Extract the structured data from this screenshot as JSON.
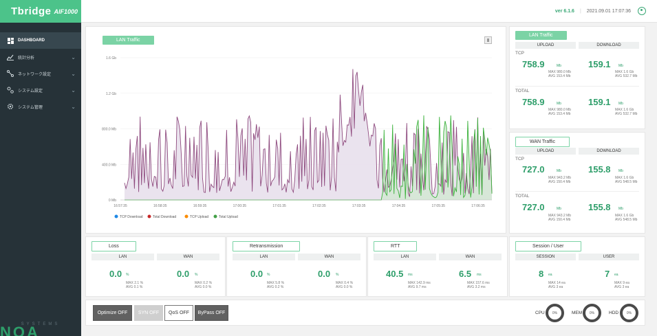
{
  "app": {
    "logo_main": "Tbridge",
    "logo_sub": "AIF1000",
    "brand_big": "NOA",
    "brand_small": "SYSTEMS"
  },
  "sidebar": {
    "items": [
      {
        "label": "DASHBOARD",
        "icon": "dashboard-icon"
      },
      {
        "label": "統計分析",
        "icon": "chart-icon"
      },
      {
        "label": "ネットワーク設定",
        "icon": "network-icon"
      },
      {
        "label": "システム設定",
        "icon": "settings-icon"
      },
      {
        "label": "システム管理",
        "icon": "gear-icon"
      }
    ]
  },
  "topbar": {
    "version": "ver 6.1.6",
    "datetime": "2021.09.01 17:07:36"
  },
  "chart_panel": {
    "tag": "LAN Traffic"
  },
  "chart_data": {
    "type": "line",
    "y_tick_labels": [
      "1.6 Gb",
      "1.2 Gb",
      "800.0 Mb",
      "400.0 Mb",
      "0 Mb"
    ],
    "y_ticks": [
      1600,
      1200,
      800,
      400,
      0
    ],
    "ylim": [
      0,
      1600
    ],
    "x_tick_labels": [
      "16:57:35",
      "16:58:35",
      "16:59:35",
      "17:00:35",
      "17:01:35",
      "17:02:35",
      "17:03:35",
      "17:04:35",
      "17:05:35",
      "17:06:35"
    ],
    "legend": [
      {
        "name": "TCP Download",
        "color": "#1e88e5"
      },
      {
        "name": "Total Download",
        "color": "#c62828"
      },
      {
        "name": "TCP Upload",
        "color": "#fb8c00"
      },
      {
        "name": "Total Upload",
        "color": "#43a047"
      }
    ],
    "series_colors": {
      "purple": "#8e4a7e",
      "green": "#3cb23c"
    }
  },
  "lan_traffic": {
    "tag": "LAN Traffic",
    "col_upload": "UPLOAD",
    "col_download": "DOWNLOAD",
    "tcp_label": "TCP",
    "total_label": "TOTAL",
    "tcp": {
      "up_value": "758.9",
      "up_unit": "Mb",
      "up_max": "MAX 980.0 Mb",
      "up_avg": "AVG 153.4 Mb",
      "down_value": "159.1",
      "down_unit": "Mb",
      "down_max": "MAX 1.6 Gb",
      "down_avg": "AVG 532.7 Mb"
    },
    "total": {
      "up_value": "758.9",
      "up_unit": "Mb",
      "up_max": "MAX 980.0 Mb",
      "up_avg": "AVG 153.4 Mb",
      "down_value": "159.1",
      "down_unit": "Mb",
      "down_max": "MAX 1.6 Gb",
      "down_avg": "AVG 532.7 Mb"
    }
  },
  "wan_traffic": {
    "tag": "WAN Traffic",
    "col_upload": "UPLOAD",
    "col_download": "DOWNLOAD",
    "tcp_label": "TCP",
    "total_label": "TOTAL",
    "tcp": {
      "up_value": "727.0",
      "up_unit": "Mb",
      "up_max": "MAX 943.2 Mb",
      "up_avg": "AVG 150.4 Mb",
      "down_value": "155.8",
      "down_unit": "Mb",
      "down_max": "MAX 1.6 Gb",
      "down_avg": "AVG 548.5 Mb"
    },
    "total": {
      "up_value": "727.0",
      "up_unit": "Mb",
      "up_max": "MAX 943.2 Mb",
      "up_avg": "AVG 150.4 Mb",
      "down_value": "155.8",
      "down_unit": "Mb",
      "down_max": "MAX 1.6 Gb",
      "down_avg": "AVG 548.5 Mb"
    }
  },
  "small_panels": [
    {
      "tag": "Loss",
      "left_hdr": "LAN",
      "right_hdr": "WAN",
      "left": {
        "value": "0.0",
        "unit": "%",
        "max": "MAX 2.1 %",
        "avg": "AVG 0.1 %"
      },
      "right": {
        "value": "0.0",
        "unit": "%",
        "max": "MAX 0.2 %",
        "avg": "AVG 0.0 %"
      }
    },
    {
      "tag": "Retransmission",
      "left_hdr": "LAN",
      "right_hdr": "WAN",
      "left": {
        "value": "0.0",
        "unit": "%",
        "max": "MAX 5.8 %",
        "avg": "AVG 0.2 %"
      },
      "right": {
        "value": "0.0",
        "unit": "%",
        "max": "MAX 0.4 %",
        "avg": "AVG 0.0 %"
      }
    },
    {
      "tag": "RTT",
      "left_hdr": "LAN",
      "right_hdr": "WAN",
      "left": {
        "value": "40.5",
        "unit": "ms",
        "max": "MAX 142.9 ms",
        "avg": "AVG 9.7 ms"
      },
      "right": {
        "value": "6.5",
        "unit": "ms",
        "max": "MAX 157.6 ms",
        "avg": "AVG 3.2 ms"
      }
    },
    {
      "tag": "Session / User",
      "left_hdr": "SESSION",
      "right_hdr": "USER",
      "left": {
        "value": "8",
        "unit": "ea",
        "max": "MAX 14 ea",
        "avg": "AVG 3 ea"
      },
      "right": {
        "value": "7",
        "unit": "ea",
        "max": "MAX 9 ea",
        "avg": "AVG 3 ea"
      }
    }
  ],
  "controls": {
    "optimize": "Optimize OFF",
    "syn": "SYN OFF",
    "qos": "QoS OFF",
    "bypass": "ByPass OFF",
    "cpu_label": "CPU",
    "cpu_value": "0%",
    "mem_label": "MEM",
    "mem_value": "0%",
    "hdd_label": "HDD",
    "hdd_value": "0%"
  }
}
